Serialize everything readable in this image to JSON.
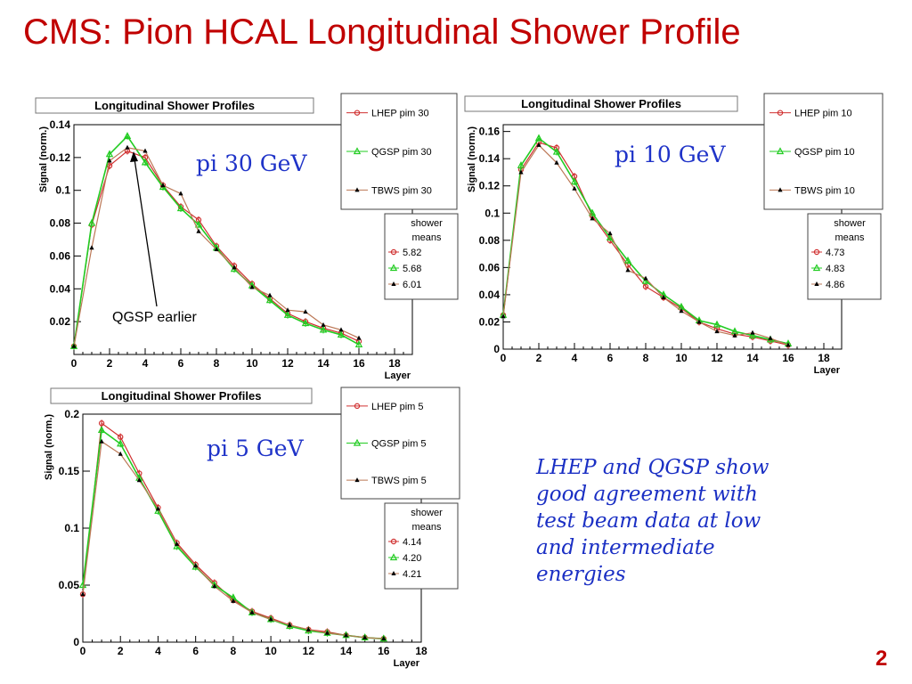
{
  "title": "CMS: Pion HCAL Longitudinal Shower Profile",
  "page_number": "2",
  "annotation": "QGSP earlier",
  "conclusion": "LHEP and QGSP show\ngood agreement with\ntest beam data at low\nand intermediate\nenergies",
  "colors": {
    "title": "#c00000",
    "LHEP": "#d03030",
    "QGSP": "#22cc22",
    "TBWS": "#bb7755",
    "text_blue": "#1a2fc4"
  },
  "chart_data": [
    {
      "type": "line",
      "title": "Longitudinal Shower Profiles",
      "energy_label": "pi 30 GeV",
      "xlabel": "Layer",
      "ylabel": "Signal (norm.)",
      "xlim": [
        0,
        19
      ],
      "ylim": [
        0,
        0.14
      ],
      "xticks": [
        "0",
        "2",
        "4",
        "6",
        "8",
        "10",
        "12",
        "14",
        "16",
        "18"
      ],
      "yticks": [
        "0.02",
        "0.04",
        "0.06",
        "0.08",
        "0.1",
        "0.12",
        "0.14"
      ],
      "x": [
        0,
        1,
        2,
        3,
        4,
        5,
        6,
        7,
        8,
        9,
        10,
        11,
        12,
        13,
        14,
        15,
        16
      ],
      "series": [
        {
          "name": "LHEP pim 30",
          "values": [
            0.005,
            0.079,
            0.115,
            0.124,
            0.12,
            0.103,
            0.09,
            0.082,
            0.066,
            0.054,
            0.043,
            0.034,
            0.025,
            0.02,
            0.016,
            0.013,
            0.008
          ]
        },
        {
          "name": "QGSP pim 30",
          "values": [
            0.005,
            0.08,
            0.122,
            0.133,
            0.117,
            0.102,
            0.089,
            0.079,
            0.065,
            0.052,
            0.042,
            0.033,
            0.024,
            0.019,
            0.015,
            0.012,
            0.006
          ]
        },
        {
          "name": "TBWS pim 30",
          "values": [
            0.005,
            0.065,
            0.118,
            0.126,
            0.124,
            0.103,
            0.098,
            0.075,
            0.064,
            0.053,
            0.041,
            0.036,
            0.027,
            0.026,
            0.018,
            0.015,
            0.01
          ]
        }
      ],
      "legend_title": [
        "shower",
        "means"
      ],
      "means": [
        "5.82",
        "5.68",
        "6.01"
      ]
    },
    {
      "type": "line",
      "title": "Longitudinal Shower Profiles",
      "energy_label": "pi 10 GeV",
      "xlabel": "Layer",
      "ylabel": "Signal (norm.)",
      "xlim": [
        0,
        19
      ],
      "ylim": [
        0,
        0.165
      ],
      "xticks": [
        "0",
        "2",
        "4",
        "6",
        "8",
        "10",
        "12",
        "14",
        "16",
        "18"
      ],
      "yticks": [
        "0",
        "0.02",
        "0.04",
        "0.06",
        "0.08",
        "0.1",
        "0.12",
        "0.14",
        "0.16"
      ],
      "x": [
        0,
        1,
        2,
        3,
        4,
        5,
        6,
        7,
        8,
        9,
        10,
        11,
        12,
        13,
        14,
        15,
        16
      ],
      "series": [
        {
          "name": "LHEP pim 10",
          "values": [
            0.025,
            0.132,
            0.152,
            0.148,
            0.127,
            0.098,
            0.08,
            0.062,
            0.046,
            0.038,
            0.03,
            0.02,
            0.015,
            0.011,
            0.009,
            0.006,
            0.003
          ]
        },
        {
          "name": "QGSP pim 10",
          "values": [
            0.025,
            0.135,
            0.155,
            0.145,
            0.123,
            0.1,
            0.082,
            0.065,
            0.05,
            0.04,
            0.031,
            0.021,
            0.018,
            0.013,
            0.01,
            0.007,
            0.004
          ]
        },
        {
          "name": "TBWS pim 10",
          "values": [
            0.024,
            0.13,
            0.15,
            0.137,
            0.118,
            0.096,
            0.085,
            0.058,
            0.052,
            0.038,
            0.028,
            0.02,
            0.013,
            0.01,
            0.012,
            0.008,
            0.003
          ]
        }
      ],
      "legend_title": [
        "shower",
        "means"
      ],
      "means": [
        "4.73",
        "4.83",
        "4.86"
      ]
    },
    {
      "type": "line",
      "title": "Longitudinal Shower Profiles",
      "energy_label": "pi 5 GeV",
      "xlabel": "Layer",
      "ylabel": "Signal (norm.)",
      "xlim": [
        0,
        18
      ],
      "ylim": [
        0,
        0.2
      ],
      "xticks": [
        "0",
        "2",
        "4",
        "6",
        "8",
        "10",
        "12",
        "14",
        "16",
        "18"
      ],
      "yticks": [
        "0",
        "0.05",
        "0.1",
        "0.15",
        "0.2"
      ],
      "x": [
        0,
        1,
        2,
        3,
        4,
        5,
        6,
        7,
        8,
        9,
        10,
        11,
        12,
        13,
        14,
        15,
        16
      ],
      "series": [
        {
          "name": "LHEP pim 5",
          "values": [
            0.042,
            0.192,
            0.18,
            0.148,
            0.118,
            0.087,
            0.068,
            0.052,
            0.037,
            0.027,
            0.021,
            0.015,
            0.011,
            0.009,
            0.006,
            0.004,
            0.003
          ]
        },
        {
          "name": "QGSP pim 5",
          "values": [
            0.05,
            0.186,
            0.174,
            0.144,
            0.115,
            0.084,
            0.066,
            0.05,
            0.039,
            0.026,
            0.02,
            0.014,
            0.01,
            0.008,
            0.006,
            0.004,
            0.003
          ]
        },
        {
          "name": "TBWS pim 5",
          "values": [
            0.042,
            0.176,
            0.165,
            0.142,
            0.117,
            0.086,
            0.067,
            0.049,
            0.036,
            0.026,
            0.02,
            0.015,
            0.011,
            0.008,
            0.006,
            0.004,
            0.003
          ]
        }
      ],
      "legend_title": [
        "shower",
        "means"
      ],
      "means": [
        "4.14",
        "4.20",
        "4.21"
      ]
    }
  ]
}
